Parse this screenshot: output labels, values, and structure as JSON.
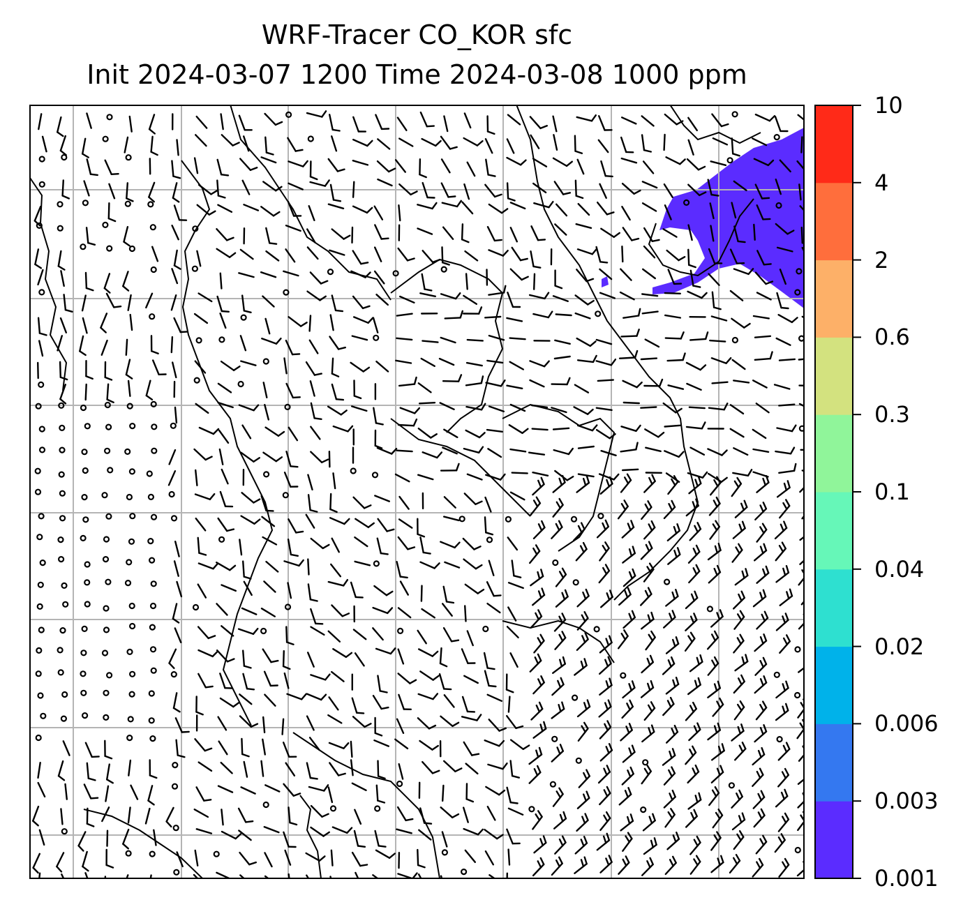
{
  "title": {
    "line1": "WRF-Tracer CO_KOR sfc",
    "line2": "Init 2024-03-07 1200 Time 2024-03-08 1000 ppm"
  },
  "colorbar": {
    "levels": [
      "0.001",
      "0.003",
      "0.006",
      "0.02",
      "0.04",
      "0.1",
      "0.3",
      "0.6",
      "2",
      "4",
      "10"
    ],
    "colors": [
      "#5b2cff",
      "#3478f0",
      "#00b2ea",
      "#2ee0d0",
      "#66f7b8",
      "#90f59a",
      "#d3e27f",
      "#fdb068",
      "#ff6e3c",
      "#ff2a18"
    ]
  },
  "map": {
    "plume_color": "#5b2cff",
    "grid_color": "#b4b4b4",
    "coast_color": "#000000"
  }
}
